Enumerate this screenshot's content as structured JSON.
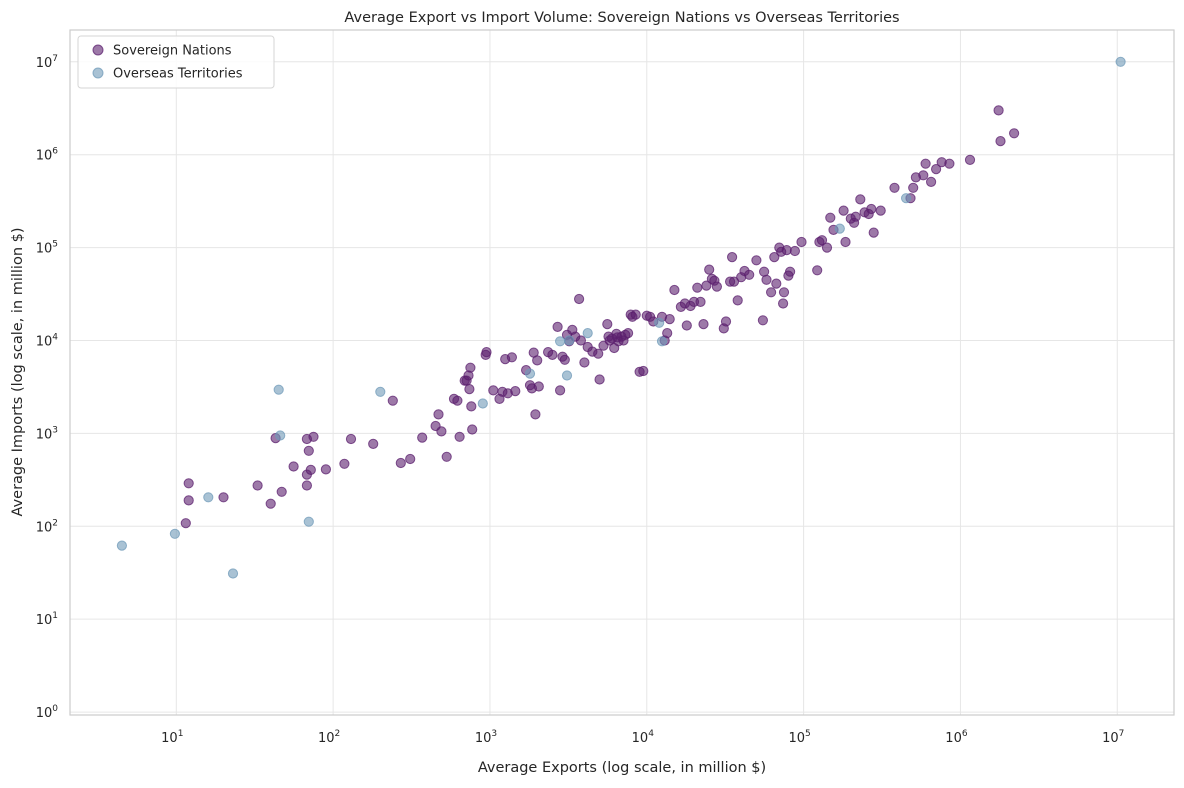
{
  "colors": {
    "sovereign": "#5b1f6e",
    "territory": "#6f9ab8",
    "grid": "#e6e6e6",
    "frame": "#cccccc"
  },
  "chart_data": {
    "type": "scatter",
    "title": "Average Export vs Import Volume: Sovereign Nations vs Overseas Territories",
    "xlabel": "Average Exports (log scale, in million $)",
    "ylabel": "Average Imports (log scale, in million $)",
    "xscale": "log",
    "yscale": "log",
    "xlim": [
      2.1,
      23000000
    ],
    "ylim": [
      0.93,
      22000000
    ],
    "grid": true,
    "legend_position": "top-left",
    "x_ticks": [
      {
        "base": "10",
        "exp": "1",
        "value": 10
      },
      {
        "base": "10",
        "exp": "2",
        "value": 100
      },
      {
        "base": "10",
        "exp": "3",
        "value": 1000
      },
      {
        "base": "10",
        "exp": "4",
        "value": 10000
      },
      {
        "base": "10",
        "exp": "5",
        "value": 100000
      },
      {
        "base": "10",
        "exp": "6",
        "value": 1000000
      },
      {
        "base": "10",
        "exp": "7",
        "value": 10000000
      }
    ],
    "y_ticks": [
      {
        "base": "10",
        "exp": "0",
        "value": 1
      },
      {
        "base": "10",
        "exp": "1",
        "value": 10
      },
      {
        "base": "10",
        "exp": "2",
        "value": 100
      },
      {
        "base": "10",
        "exp": "3",
        "value": 1000
      },
      {
        "base": "10",
        "exp": "4",
        "value": 10000
      },
      {
        "base": "10",
        "exp": "5",
        "value": 100000
      },
      {
        "base": "10",
        "exp": "6",
        "value": 1000000
      },
      {
        "base": "10",
        "exp": "7",
        "value": 10000000
      }
    ],
    "series": [
      {
        "name": "Sovereign Nations",
        "color": "#5b1f6e",
        "points": [
          [
            12,
            290
          ],
          [
            12,
            190
          ],
          [
            11.5,
            108
          ],
          [
            20,
            205
          ],
          [
            33,
            275
          ],
          [
            40,
            175
          ],
          [
            47,
            235
          ],
          [
            56,
            440
          ],
          [
            43,
            890
          ],
          [
            68,
            870
          ],
          [
            75,
            920
          ],
          [
            70,
            650
          ],
          [
            68,
            360
          ],
          [
            72,
            405
          ],
          [
            68,
            275
          ],
          [
            90,
            410
          ],
          [
            118,
            470
          ],
          [
            130,
            870
          ],
          [
            180,
            770
          ],
          [
            240,
            2250
          ],
          [
            270,
            480
          ],
          [
            310,
            530
          ],
          [
            370,
            900
          ],
          [
            450,
            1200
          ],
          [
            470,
            1600
          ],
          [
            490,
            1050
          ],
          [
            530,
            560
          ],
          [
            590,
            2350
          ],
          [
            620,
            2250
          ],
          [
            640,
            920
          ],
          [
            690,
            3700
          ],
          [
            710,
            3700
          ],
          [
            730,
            4200
          ],
          [
            740,
            3000
          ],
          [
            750,
            5100
          ],
          [
            760,
            1950
          ],
          [
            770,
            1100
          ],
          [
            940,
            7000
          ],
          [
            950,
            7500
          ],
          [
            1050,
            2900
          ],
          [
            1150,
            2350
          ],
          [
            1200,
            2800
          ],
          [
            1250,
            6300
          ],
          [
            1300,
            2700
          ],
          [
            1380,
            6600
          ],
          [
            1450,
            2850
          ],
          [
            1700,
            4800
          ],
          [
            1800,
            3300
          ],
          [
            1850,
            3050
          ],
          [
            1900,
            7400
          ],
          [
            1950,
            1600
          ],
          [
            2000,
            6100
          ],
          [
            2050,
            3200
          ],
          [
            2350,
            7500
          ],
          [
            2500,
            7000
          ],
          [
            2700,
            14000
          ],
          [
            2800,
            2900
          ],
          [
            2900,
            6700
          ],
          [
            3000,
            6200
          ],
          [
            3100,
            11500
          ],
          [
            3200,
            9800
          ],
          [
            3350,
            13000
          ],
          [
            3500,
            11000
          ],
          [
            3700,
            28000
          ],
          [
            3800,
            10000
          ],
          [
            4000,
            5800
          ],
          [
            4200,
            8500
          ],
          [
            4500,
            7600
          ],
          [
            4900,
            7200
          ],
          [
            5000,
            3800
          ],
          [
            5300,
            8800
          ],
          [
            5600,
            15000
          ],
          [
            5700,
            11000
          ],
          [
            5800,
            10000
          ],
          [
            6000,
            10500
          ],
          [
            6200,
            8300
          ],
          [
            6400,
            11800
          ],
          [
            6500,
            10800
          ],
          [
            6600,
            9800
          ],
          [
            6900,
            11000
          ],
          [
            7100,
            10000
          ],
          [
            7300,
            11500
          ],
          [
            7600,
            12000
          ],
          [
            7900,
            19000
          ],
          [
            8100,
            18000
          ],
          [
            8500,
            19000
          ],
          [
            9000,
            4600
          ],
          [
            9500,
            4700
          ],
          [
            10000,
            18500
          ],
          [
            10500,
            18000
          ],
          [
            11000,
            16000
          ],
          [
            12500,
            18000
          ],
          [
            13000,
            10000
          ],
          [
            13500,
            12000
          ],
          [
            14000,
            17000
          ],
          [
            15000,
            35000
          ],
          [
            16500,
            23000
          ],
          [
            17500,
            25000
          ],
          [
            18000,
            14500
          ],
          [
            19000,
            23500
          ],
          [
            20000,
            26000
          ],
          [
            21000,
            37000
          ],
          [
            22000,
            26000
          ],
          [
            23000,
            15000
          ],
          [
            24000,
            39000
          ],
          [
            25000,
            58000
          ],
          [
            26000,
            46000
          ],
          [
            27000,
            44000
          ],
          [
            28000,
            38000
          ],
          [
            31000,
            13500
          ],
          [
            32000,
            16000
          ],
          [
            34000,
            43000
          ],
          [
            35000,
            79000
          ],
          [
            36000,
            43000
          ],
          [
            38000,
            27000
          ],
          [
            40000,
            48000
          ],
          [
            42000,
            56000
          ],
          [
            45000,
            51000
          ],
          [
            50000,
            73000
          ],
          [
            55000,
            16500
          ],
          [
            56000,
            55000
          ],
          [
            58000,
            45000
          ],
          [
            62000,
            33000
          ],
          [
            65000,
            79000
          ],
          [
            67000,
            41000
          ],
          [
            70000,
            100000
          ],
          [
            72000,
            90000
          ],
          [
            74000,
            25000
          ],
          [
            75000,
            33000
          ],
          [
            78000,
            94000
          ],
          [
            80000,
            50000
          ],
          [
            82000,
            55000
          ],
          [
            88000,
            92000
          ],
          [
            97000,
            115000
          ],
          [
            122000,
            57000
          ],
          [
            126000,
            115000
          ],
          [
            131000,
            120000
          ],
          [
            141000,
            100000
          ],
          [
            148000,
            210000
          ],
          [
            155000,
            155000
          ],
          [
            180000,
            250000
          ],
          [
            185000,
            115000
          ],
          [
            200000,
            205000
          ],
          [
            210000,
            185000
          ],
          [
            215000,
            215000
          ],
          [
            230000,
            330000
          ],
          [
            245000,
            240000
          ],
          [
            260000,
            230000
          ],
          [
            270000,
            260000
          ],
          [
            280000,
            145000
          ],
          [
            310000,
            250000
          ],
          [
            380000,
            440000
          ],
          [
            480000,
            340000
          ],
          [
            500000,
            440000
          ],
          [
            520000,
            570000
          ],
          [
            580000,
            600000
          ],
          [
            600000,
            800000
          ],
          [
            650000,
            510000
          ],
          [
            700000,
            700000
          ],
          [
            760000,
            830000
          ],
          [
            850000,
            800000
          ],
          [
            1150000,
            880000
          ],
          [
            1750000,
            3000000
          ],
          [
            1800000,
            1400000
          ],
          [
            2200000,
            1700000
          ]
        ]
      },
      {
        "name": "Overseas Territories",
        "color": "#6f9ab8",
        "points": [
          [
            4.5,
            62
          ],
          [
            9.8,
            83
          ],
          [
            16,
            205
          ],
          [
            23,
            31
          ],
          [
            45,
            2950
          ],
          [
            46,
            950
          ],
          [
            70,
            112
          ],
          [
            200,
            2800
          ],
          [
            900,
            2100
          ],
          [
            1800,
            4400
          ],
          [
            2800,
            9800
          ],
          [
            3100,
            4200
          ],
          [
            3200,
            10000
          ],
          [
            4200,
            12000
          ],
          [
            12000,
            15500
          ],
          [
            12500,
            9800
          ],
          [
            170000,
            160000
          ],
          [
            450000,
            340000
          ],
          [
            10500000,
            10000000
          ]
        ]
      }
    ]
  }
}
